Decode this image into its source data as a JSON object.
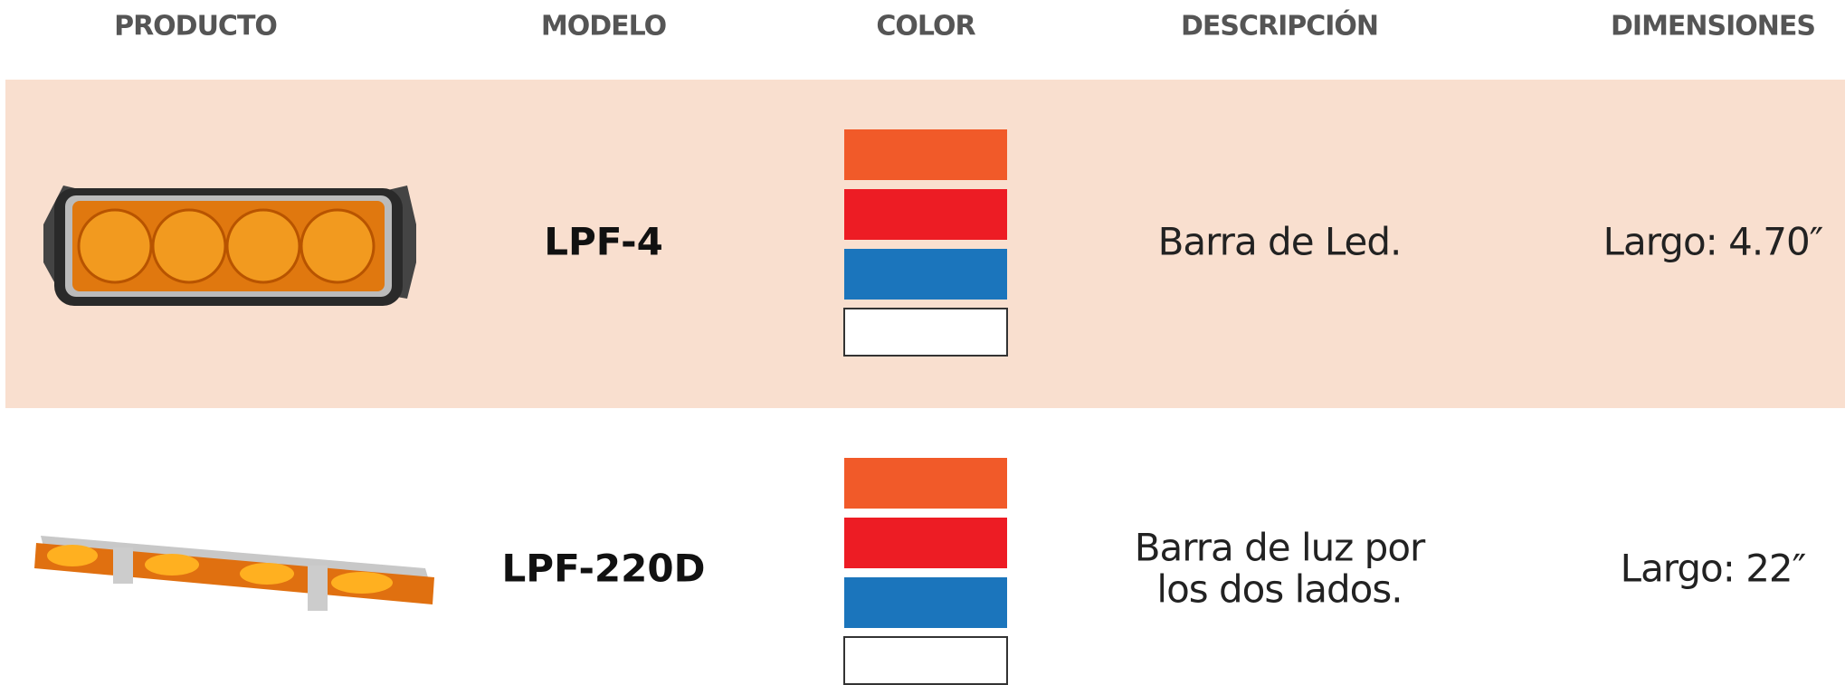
{
  "header": {
    "columns": [
      "PRODUCTO",
      "MODELO",
      "COLOR",
      "DESCRIPCIÓN",
      "DIMENSIONES"
    ]
  },
  "table": {
    "rows": [
      {
        "model": "LPF-4",
        "colors": [
          "#f15a29",
          "#ed1c24",
          "#1b75bc",
          "#ffffff"
        ],
        "description": [
          "Barra de Led."
        ],
        "dimensions": "Largo: 4.70″"
      },
      {
        "model": "LPF-220D",
        "colors": [
          "#f15a29",
          "#ed1c24",
          "#1b75bc",
          "#ffffff"
        ],
        "description": [
          "Barra de luz por",
          "los dos lados."
        ],
        "dimensions": "Largo: 22″"
      }
    ]
  }
}
